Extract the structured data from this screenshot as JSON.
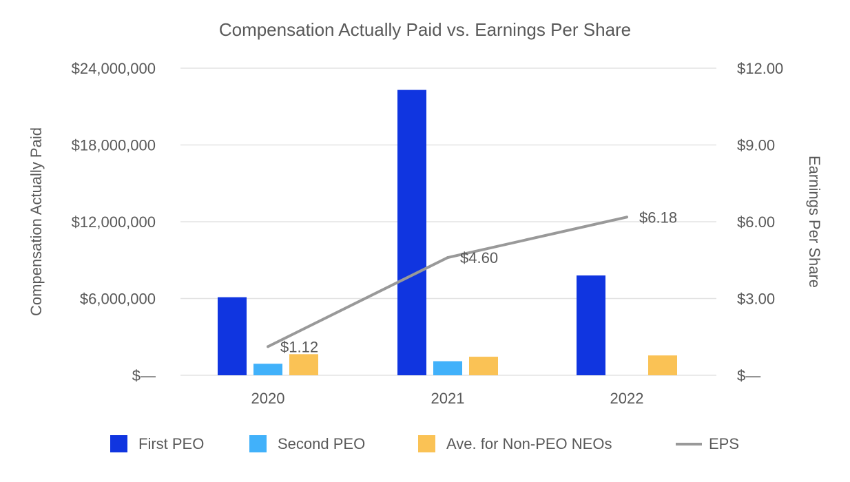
{
  "chart_data": {
    "type": "bar",
    "title": "Compensation Actually Paid vs. Earnings Per Share",
    "ylabel": "Compensation Actually Paid",
    "y2label": "Earnings Per Share",
    "categories": [
      "2020",
      "2021",
      "2022"
    ],
    "ylim": [
      0,
      24000000
    ],
    "y2lim": [
      0,
      12
    ],
    "y_ticks": [
      {
        "value": 0,
        "label": "$—"
      },
      {
        "value": 6000000,
        "label": "$6,000,000"
      },
      {
        "value": 12000000,
        "label": "$12,000,000"
      },
      {
        "value": 18000000,
        "label": "$18,000,000"
      },
      {
        "value": 24000000,
        "label": "$24,000,000"
      }
    ],
    "y2_ticks": [
      {
        "value": 0,
        "label": "$—"
      },
      {
        "value": 3,
        "label": "$3.00"
      },
      {
        "value": 6,
        "label": "$6.00"
      },
      {
        "value": 9,
        "label": "$9.00"
      },
      {
        "value": 12,
        "label": "$12.00"
      }
    ],
    "series": [
      {
        "name": "First PEO",
        "type": "bar",
        "axis": "left",
        "color": "#1035e0",
        "values": [
          6100000,
          22300000,
          7800000
        ]
      },
      {
        "name": "Second PEO",
        "type": "bar",
        "axis": "left",
        "color": "#41b1fa",
        "values": [
          900000,
          1100000,
          null
        ]
      },
      {
        "name": "Ave. for Non-PEO NEOs",
        "type": "bar",
        "axis": "left",
        "color": "#fac255",
        "values": [
          1650000,
          1450000,
          1550000
        ]
      },
      {
        "name": "EPS",
        "type": "line",
        "axis": "right",
        "color": "#999999",
        "values": [
          1.12,
          4.6,
          6.18
        ],
        "labels": [
          "$1.12",
          "$4.60",
          "$6.18"
        ]
      }
    ],
    "legend_position": "bottom",
    "grid": true
  }
}
